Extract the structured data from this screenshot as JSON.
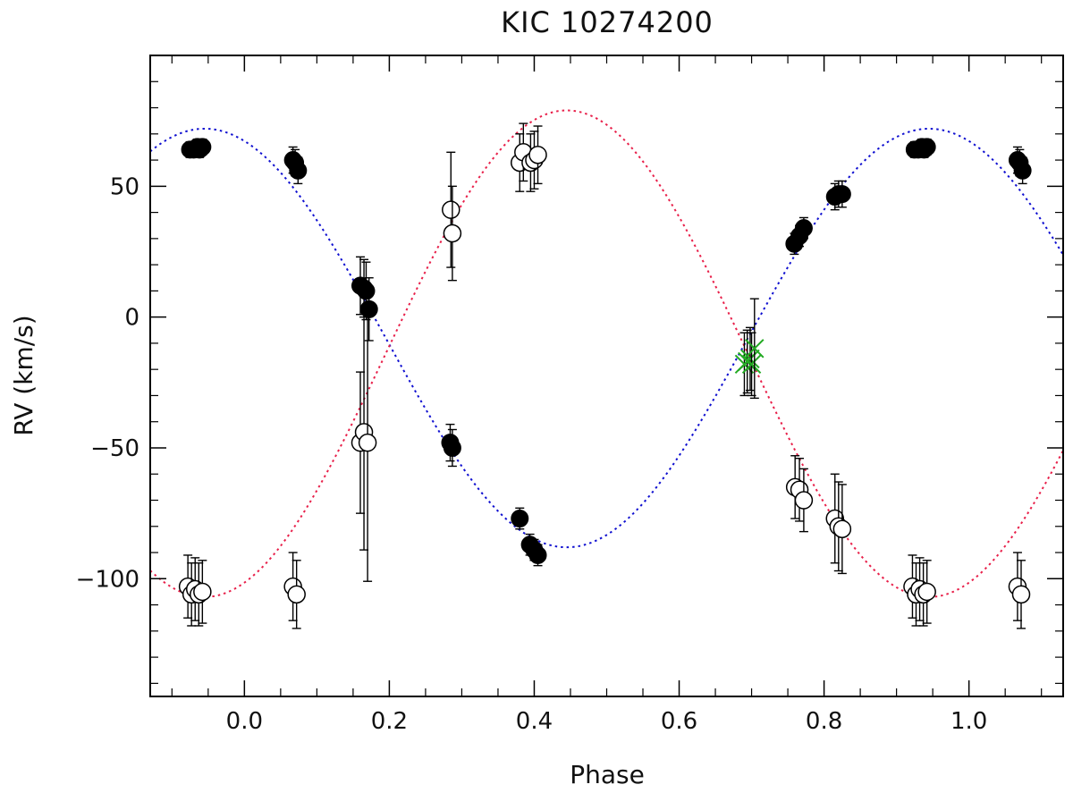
{
  "chart_data": {
    "type": "scatter",
    "title": "KIC  10274200",
    "xlabel": "Phase",
    "ylabel": "RV (km/s)",
    "xlim": [
      -0.13,
      1.13
    ],
    "ylim": [
      -145,
      100
    ],
    "x_ticks": [
      0.0,
      0.2,
      0.4,
      0.6,
      0.8,
      1.0
    ],
    "x_tick_labels": [
      "0.0",
      "0.2",
      "0.4",
      "0.6",
      "0.8",
      "1.0"
    ],
    "y_ticks": [
      -100,
      -50,
      0,
      50
    ],
    "y_tick_labels": [
      "−100",
      "−50",
      "0",
      "50"
    ],
    "grid": false,
    "colors": {
      "primary_model": "#1010d0",
      "secondary_model": "#e8204a",
      "blended": "#22aa22",
      "points": "#000000"
    },
    "series": [
      {
        "marker": "filled-circle",
        "points": [
          {
            "x": -0.075,
            "y": 64,
            "err": 3
          },
          {
            "x": -0.07,
            "y": 64,
            "err": 3
          },
          {
            "x": -0.065,
            "y": 65,
            "err": 3
          },
          {
            "x": -0.062,
            "y": 64,
            "err": 3
          },
          {
            "x": -0.058,
            "y": 65,
            "err": 3
          },
          {
            "x": 0.067,
            "y": 60,
            "err": 5
          },
          {
            "x": 0.07,
            "y": 59,
            "err": 5
          },
          {
            "x": 0.074,
            "y": 56,
            "err": 5
          },
          {
            "x": 0.16,
            "y": 12,
            "err": 11
          },
          {
            "x": 0.165,
            "y": 11,
            "err": 11
          },
          {
            "x": 0.168,
            "y": 10,
            "err": 11
          },
          {
            "x": 0.172,
            "y": 3,
            "err": 12
          },
          {
            "x": 0.284,
            "y": -48,
            "err": 7
          },
          {
            "x": 0.287,
            "y": -50,
            "err": 7
          },
          {
            "x": 0.38,
            "y": -77,
            "err": 4
          },
          {
            "x": 0.394,
            "y": -87,
            "err": 4
          },
          {
            "x": 0.4,
            "y": -89,
            "err": 4
          },
          {
            "x": 0.405,
            "y": -91,
            "err": 4
          },
          {
            "x": 0.759,
            "y": 28,
            "err": 4
          },
          {
            "x": 0.766,
            "y": 31,
            "err": 4
          },
          {
            "x": 0.772,
            "y": 34,
            "err": 4
          },
          {
            "x": 0.815,
            "y": 46,
            "err": 5
          },
          {
            "x": 0.82,
            "y": 47,
            "err": 5
          },
          {
            "x": 0.825,
            "y": 47,
            "err": 5
          },
          {
            "x": 0.925,
            "y": 64,
            "err": 3
          },
          {
            "x": 0.93,
            "y": 64,
            "err": 3
          },
          {
            "x": 0.935,
            "y": 65,
            "err": 3
          },
          {
            "x": 0.938,
            "y": 64,
            "err": 3
          },
          {
            "x": 0.942,
            "y": 65,
            "err": 3
          },
          {
            "x": 1.067,
            "y": 60,
            "err": 5
          },
          {
            "x": 1.07,
            "y": 59,
            "err": 5
          },
          {
            "x": 1.074,
            "y": 56,
            "err": 5
          }
        ]
      },
      {
        "marker": "open-circle",
        "points": [
          {
            "x": -0.078,
            "y": -103,
            "err": 12
          },
          {
            "x": -0.073,
            "y": -106,
            "err": 12
          },
          {
            "x": -0.068,
            "y": -104,
            "err": 12
          },
          {
            "x": -0.063,
            "y": -106,
            "err": 12
          },
          {
            "x": -0.058,
            "y": -105,
            "err": 12
          },
          {
            "x": 0.067,
            "y": -103,
            "err": 13
          },
          {
            "x": 0.072,
            "y": -106,
            "err": 13
          },
          {
            "x": 0.16,
            "y": -48,
            "err": 27
          },
          {
            "x": 0.165,
            "y": -44,
            "err": 45
          },
          {
            "x": 0.17,
            "y": -48,
            "err": 53
          },
          {
            "x": 0.285,
            "y": 41,
            "err": 22
          },
          {
            "x": 0.287,
            "y": 32,
            "err": 18
          },
          {
            "x": 0.38,
            "y": 59,
            "err": 11
          },
          {
            "x": 0.385,
            "y": 63,
            "err": 11
          },
          {
            "x": 0.395,
            "y": 59,
            "err": 11
          },
          {
            "x": 0.4,
            "y": 60,
            "err": 11
          },
          {
            "x": 0.405,
            "y": 62,
            "err": 11
          },
          {
            "x": 0.76,
            "y": -65,
            "err": 12
          },
          {
            "x": 0.766,
            "y": -66,
            "err": 12
          },
          {
            "x": 0.772,
            "y": -70,
            "err": 12
          },
          {
            "x": 0.815,
            "y": -77,
            "err": 17
          },
          {
            "x": 0.82,
            "y": -80,
            "err": 17
          },
          {
            "x": 0.825,
            "y": -81,
            "err": 17
          },
          {
            "x": 0.922,
            "y": -103,
            "err": 12
          },
          {
            "x": 0.927,
            "y": -106,
            "err": 12
          },
          {
            "x": 0.932,
            "y": -104,
            "err": 12
          },
          {
            "x": 0.937,
            "y": -106,
            "err": 12
          },
          {
            "x": 0.942,
            "y": -105,
            "err": 12
          },
          {
            "x": 1.067,
            "y": -103,
            "err": 13
          },
          {
            "x": 1.072,
            "y": -106,
            "err": 13
          }
        ]
      },
      {
        "marker": "cross",
        "points": [
          {
            "x": 0.69,
            "y": -18,
            "err": 12
          },
          {
            "x": 0.694,
            "y": -17,
            "err": 12
          },
          {
            "x": 0.698,
            "y": -16,
            "err": 12
          },
          {
            "x": 0.7,
            "y": -18,
            "err": 12
          },
          {
            "x": 0.704,
            "y": -12,
            "err": 19
          }
        ]
      }
    ],
    "model_curves": [
      {
        "line": "dotted",
        "gamma": -8,
        "amplitude": 80,
        "phase_of_max": 0.945
      },
      {
        "line": "dotted",
        "gamma": -14,
        "amplitude": 93,
        "phase_of_max": 0.445
      }
    ]
  }
}
